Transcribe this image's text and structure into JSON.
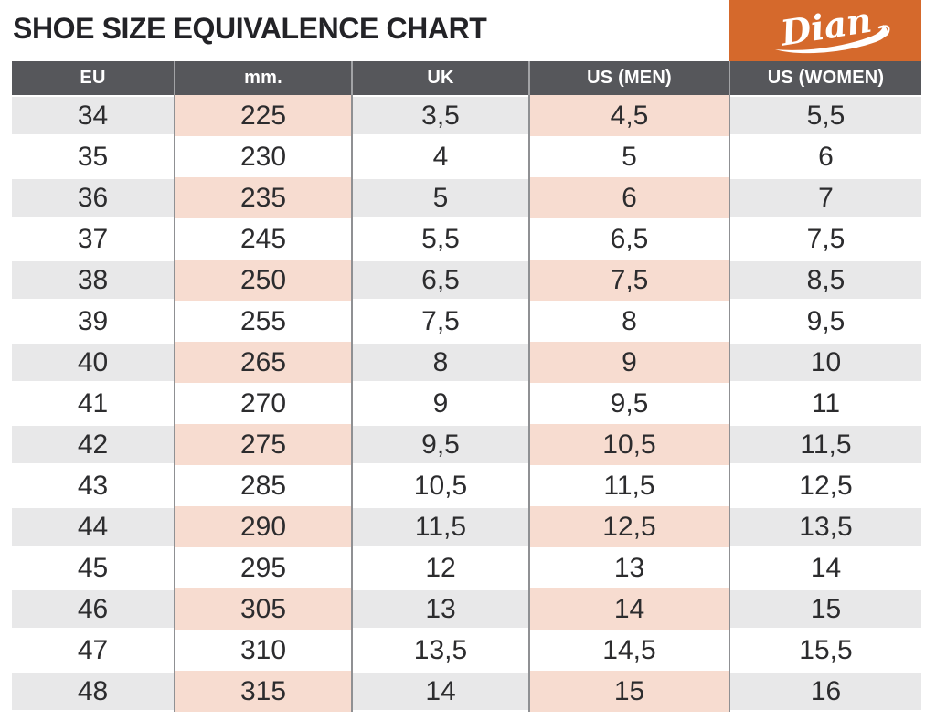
{
  "title": "SHOE SIZE EQUIVALENCE CHART",
  "brand": {
    "name": "Dian",
    "accent_color": "#d5692c",
    "text_color": "#ffffff"
  },
  "colors": {
    "header_bg": "#56575b",
    "header_text": "#ffffff",
    "shaded_row_bg": "#e8e8e9",
    "plain_row_bg": "#ffffff",
    "highlight_cell_bg": "#f7dcd0",
    "column_divider": "#8f9093",
    "cell_text": "#2c2c2e",
    "title_text": "#232327"
  },
  "chart_data": {
    "type": "table",
    "title": "SHOE SIZE EQUIVALENCE CHART",
    "columns": [
      "EU",
      "mm.",
      "UK",
      "US (MEN)",
      "US (WOMEN)"
    ],
    "rows": [
      [
        "34",
        "225",
        "3,5",
        "4,5",
        "5,5"
      ],
      [
        "35",
        "230",
        "4",
        "5",
        "6"
      ],
      [
        "36",
        "235",
        "5",
        "6",
        "7"
      ],
      [
        "37",
        "245",
        "5,5",
        "6,5",
        "7,5"
      ],
      [
        "38",
        "250",
        "6,5",
        "7,5",
        "8,5"
      ],
      [
        "39",
        "255",
        "7,5",
        "8",
        "9,5"
      ],
      [
        "40",
        "265",
        "8",
        "9",
        "10"
      ],
      [
        "41",
        "270",
        "9",
        "9,5",
        "11"
      ],
      [
        "42",
        "275",
        "9,5",
        "10,5",
        "11,5"
      ],
      [
        "43",
        "285",
        "10,5",
        "11,5",
        "12,5"
      ],
      [
        "44",
        "290",
        "11,5",
        "12,5",
        "13,5"
      ],
      [
        "45",
        "295",
        "12",
        "13",
        "14"
      ],
      [
        "46",
        "305",
        "13",
        "14",
        "15"
      ],
      [
        "47",
        "310",
        "13,5",
        "14,5",
        "15,5"
      ],
      [
        "48",
        "315",
        "14",
        "15",
        "16"
      ]
    ],
    "highlight_col_indices": [
      1,
      3
    ],
    "layout": "rows alternate shaded/white starting shaded; highlighted columns tinted salmon on shaded rows; legend off; grid = vertical column dividers only"
  }
}
